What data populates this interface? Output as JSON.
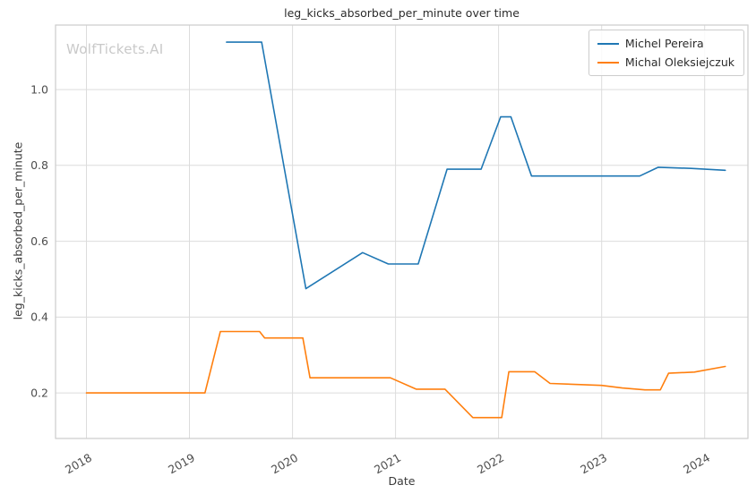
{
  "watermark": {
    "text": "WolfTickets.AI"
  },
  "chart_data": {
    "type": "line",
    "title": "leg_kicks_absorbed_per_minute over time",
    "xlabel": "Date",
    "ylabel": "leg_kicks_absorbed_per_minute",
    "xlim": [
      2017.7,
      2024.42
    ],
    "ylim": [
      0.08,
      1.17
    ],
    "xticks": [
      2018,
      2019,
      2020,
      2021,
      2022,
      2023,
      2024
    ],
    "yticks": [
      0.2,
      0.4,
      0.6,
      0.8,
      1.0
    ],
    "grid": true,
    "legend_position": "upper right",
    "colors": {
      "grid": "#dcdcdc",
      "spine": "#cccccc",
      "title_text": "#2b2b2b",
      "tick_text": "#4d4d4d",
      "watermark": "#c9c9c9"
    },
    "series": [
      {
        "name": "Michel Pereira",
        "color": "#1f77b4",
        "points": [
          [
            2019.36,
            1.125
          ],
          [
            2019.7,
            1.125
          ],
          [
            2020.13,
            0.475
          ],
          [
            2020.68,
            0.57
          ],
          [
            2020.93,
            0.54
          ],
          [
            2021.22,
            0.54
          ],
          [
            2021.5,
            0.79
          ],
          [
            2021.83,
            0.79
          ],
          [
            2022.02,
            0.928
          ],
          [
            2022.12,
            0.928
          ],
          [
            2022.32,
            0.772
          ],
          [
            2023.37,
            0.772
          ],
          [
            2023.55,
            0.795
          ],
          [
            2023.87,
            0.792
          ],
          [
            2024.2,
            0.787
          ]
        ]
      },
      {
        "name": "Michal Oleksiejczuk",
        "color": "#ff7f0e",
        "points": [
          [
            2018.0,
            0.2
          ],
          [
            2019.15,
            0.2
          ],
          [
            2019.3,
            0.362
          ],
          [
            2019.68,
            0.362
          ],
          [
            2019.73,
            0.345
          ],
          [
            2020.1,
            0.345
          ],
          [
            2020.17,
            0.24
          ],
          [
            2020.95,
            0.24
          ],
          [
            2021.2,
            0.21
          ],
          [
            2021.48,
            0.21
          ],
          [
            2021.75,
            0.135
          ],
          [
            2022.03,
            0.135
          ],
          [
            2022.1,
            0.256
          ],
          [
            2022.35,
            0.256
          ],
          [
            2022.5,
            0.225
          ],
          [
            2023.0,
            0.22
          ],
          [
            2023.2,
            0.213
          ],
          [
            2023.42,
            0.208
          ],
          [
            2023.57,
            0.208
          ],
          [
            2023.65,
            0.252
          ],
          [
            2023.9,
            0.255
          ],
          [
            2024.2,
            0.27
          ]
        ]
      }
    ]
  }
}
